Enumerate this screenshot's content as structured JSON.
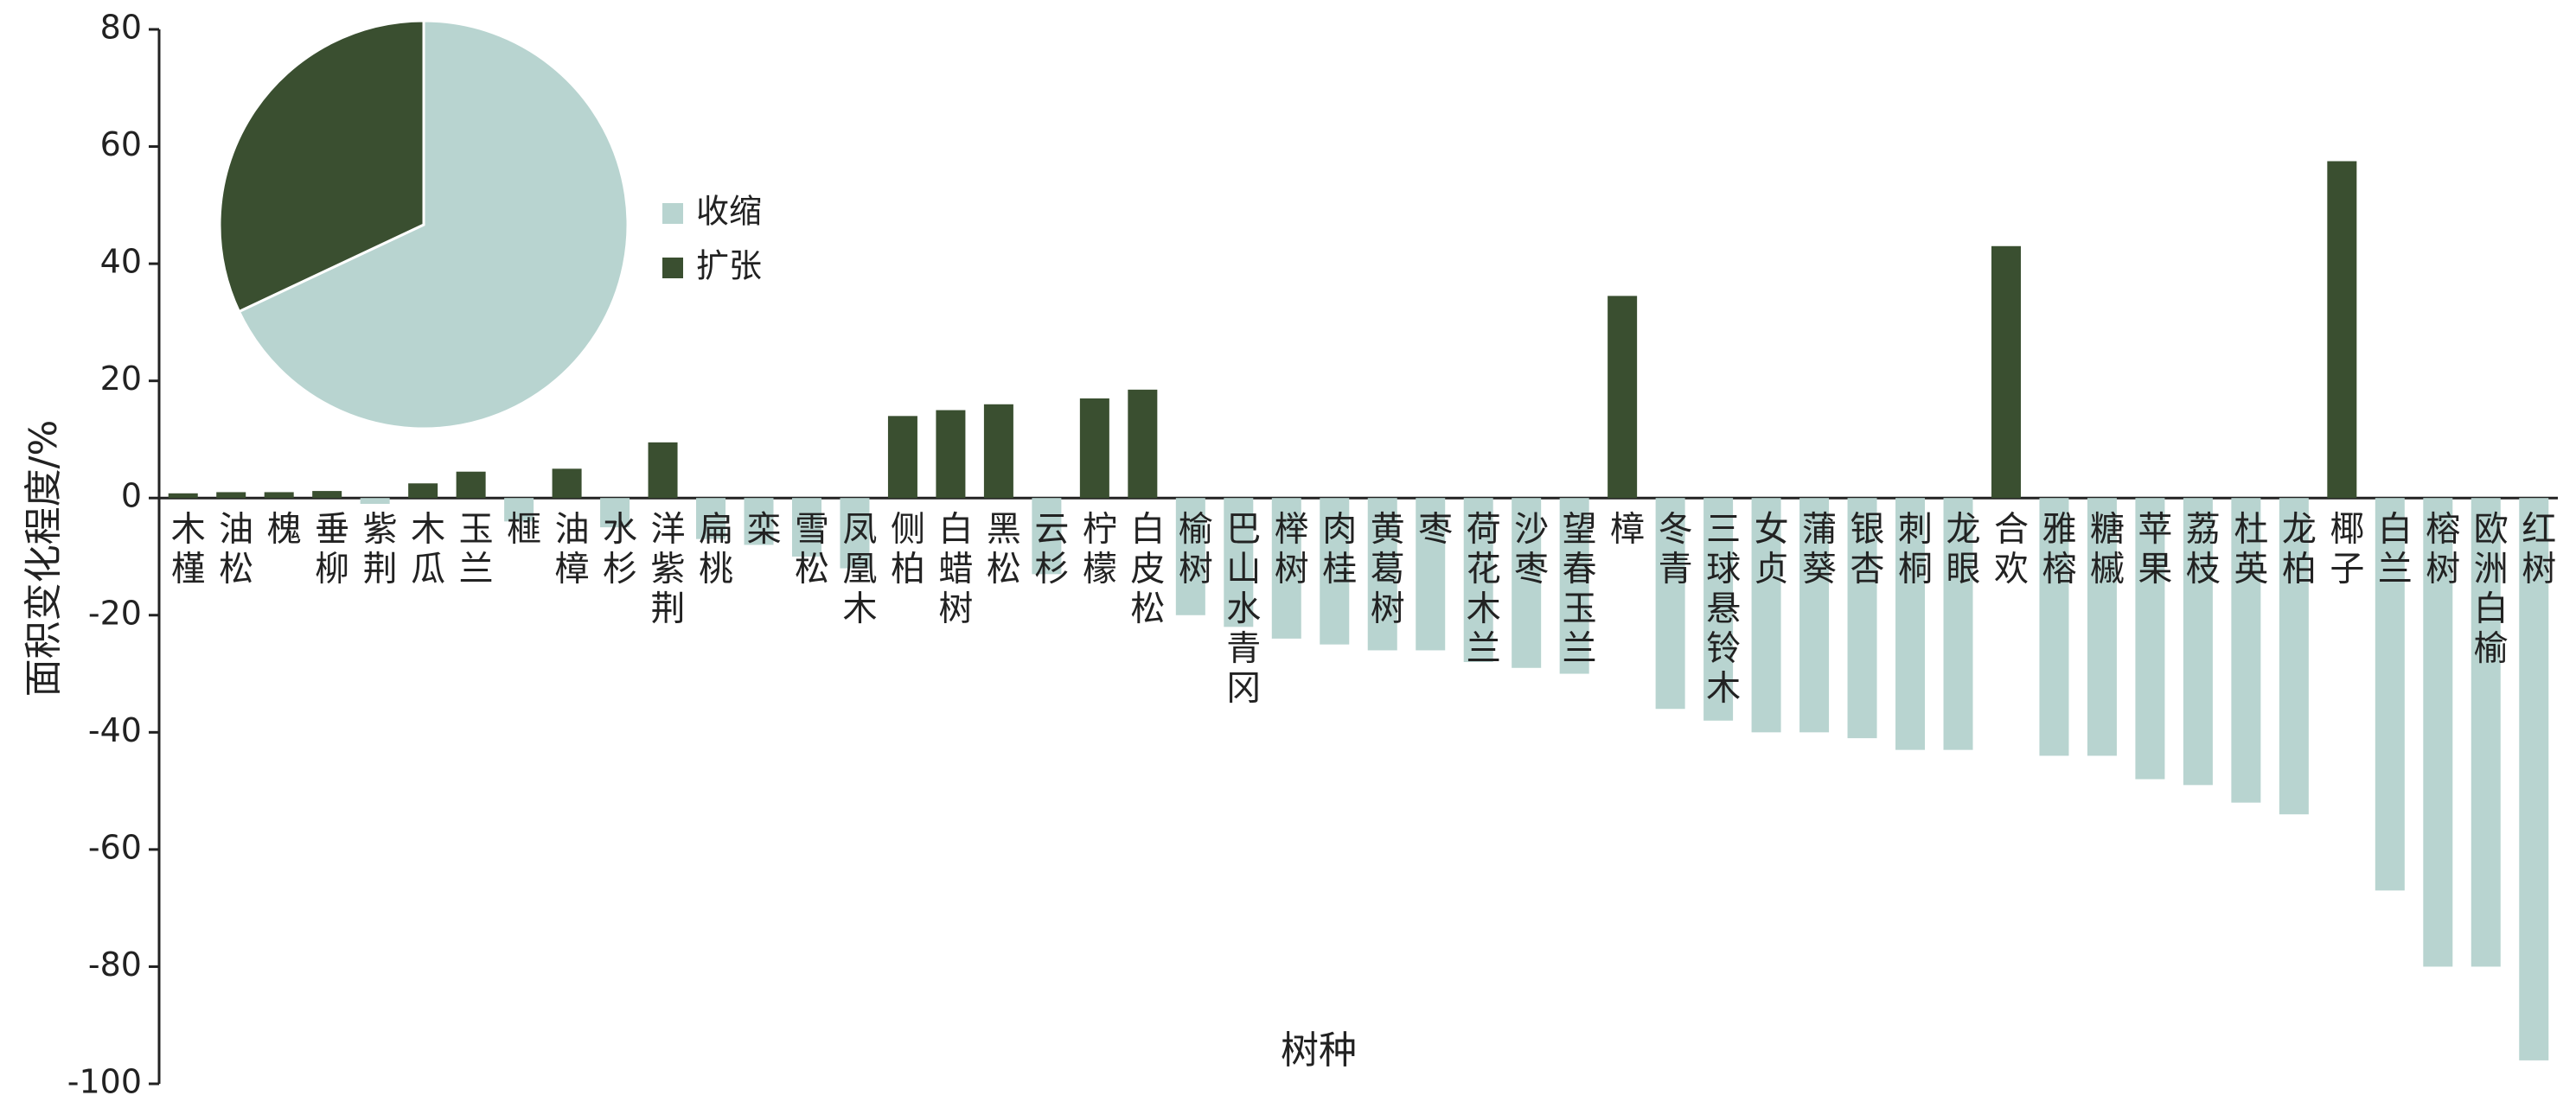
{
  "chart_data": [
    {
      "type": "bar",
      "x_label": "树种",
      "y_label": "面积变化程度/%",
      "categories": [
        "木槿",
        "油松",
        "槐",
        "垂柳",
        "紫荆",
        "木瓜",
        "玉兰",
        "榧",
        "油樟",
        "水杉",
        "洋紫荆",
        "扁桃",
        "栾",
        "雪松",
        "凤凰木",
        "侧柏",
        "白蜡树",
        "黑松",
        "云杉",
        "柠檬",
        "白皮松",
        "榆树",
        "巴山水青冈",
        "榉树",
        "肉桂",
        "黄葛树",
        "枣",
        "荷花木兰",
        "沙枣",
        "望春玉兰",
        "樟",
        "冬青",
        "三球悬铃木",
        "女贞",
        "蒲葵",
        "银杏",
        "刺桐",
        "龙眼",
        "合欢",
        "雅榕",
        "糖槭",
        "苹果",
        "荔枝",
        "杜英",
        "龙柏",
        "椰子",
        "白兰",
        "榕树",
        "欧洲白榆",
        "红树"
      ],
      "series": [
        {
          "name": "收缩",
          "color": "#b8d4d0",
          "values": [
            null,
            null,
            null,
            null,
            -1,
            null,
            null,
            -4,
            null,
            -5,
            null,
            -7,
            -8,
            -10,
            -12,
            null,
            null,
            null,
            -13,
            null,
            null,
            -20,
            -22,
            -24,
            -25,
            -26,
            -26,
            -28,
            -29,
            -30,
            null,
            -36,
            -38,
            -40,
            -40,
            -41,
            -43,
            -43,
            null,
            -44,
            -44,
            -48,
            -49,
            -52,
            -54,
            null,
            -67,
            -80,
            -80,
            -96
          ]
        },
        {
          "name": "扩张",
          "color": "#3a4f30",
          "values": [
            0.8,
            1,
            1,
            1.2,
            null,
            2.5,
            4.5,
            null,
            5,
            null,
            9.5,
            null,
            null,
            null,
            null,
            14,
            15,
            16,
            null,
            17,
            18.5,
            null,
            null,
            null,
            null,
            null,
            null,
            null,
            null,
            null,
            34.5,
            null,
            null,
            null,
            null,
            null,
            null,
            null,
            43,
            null,
            null,
            null,
            null,
            null,
            null,
            57.5,
            null,
            null,
            null,
            null
          ]
        }
      ],
      "ylim": [
        -100,
        80
      ],
      "yticks": [
        -100,
        -80,
        -60,
        -40,
        -20,
        0,
        20,
        40,
        60,
        80
      ]
    },
    {
      "type": "pie",
      "categories": [
        "收缩",
        "扩张"
      ],
      "values": [
        68,
        32
      ],
      "colors": [
        "#b8d4d0",
        "#3a4f30"
      ]
    }
  ]
}
